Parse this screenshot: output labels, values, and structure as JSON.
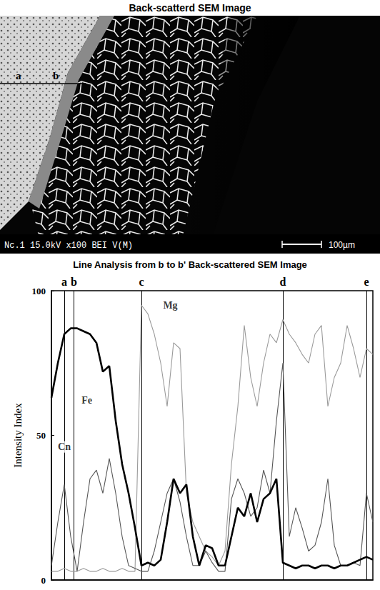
{
  "image": {
    "title": "Back-scatterd SEM Image",
    "line_labels": [
      "a",
      "b"
    ],
    "caption": "Nc.1 15.0kV x100 BEI V(M)",
    "scale_bar": "100µm"
  },
  "chart_data": {
    "type": "line",
    "title": "Line Analysis from b to b' Back-scattered SEM Image",
    "y_label": "Intensity Index",
    "x": [
      0,
      2,
      4,
      6,
      8,
      10,
      12,
      14,
      16,
      18,
      20,
      22,
      24,
      26,
      28,
      30,
      32,
      34,
      36,
      38,
      40,
      42,
      44,
      46,
      48,
      50,
      52,
      54,
      56,
      58,
      60,
      62,
      64,
      66,
      68,
      70,
      72,
      74,
      76,
      78,
      80,
      82,
      84,
      86,
      88,
      90,
      92,
      94,
      96,
      98,
      100
    ],
    "series": [
      {
        "name": "Fe",
        "color": "#000000",
        "line_style": "solid",
        "values": [
          63,
          75,
          85,
          87,
          87,
          86,
          85,
          82,
          72,
          74,
          55,
          40,
          30,
          18,
          5,
          6,
          5,
          7,
          20,
          35,
          30,
          33,
          15,
          5,
          12,
          11,
          5,
          5,
          15,
          25,
          22,
          30,
          20,
          28,
          30,
          35,
          6,
          5,
          4,
          5,
          5,
          4,
          5,
          5,
          4,
          5,
          5,
          6,
          7,
          8,
          7
        ]
      },
      {
        "name": "Cn",
        "color": "#555555",
        "line_style": "solid",
        "values": [
          5,
          20,
          33,
          15,
          3,
          20,
          35,
          38,
          30,
          42,
          30,
          15,
          5,
          4,
          3,
          3,
          10,
          20,
          30,
          35,
          27,
          15,
          5,
          5,
          10,
          6,
          3,
          3,
          28,
          35,
          30,
          22,
          25,
          38,
          30,
          55,
          75,
          15,
          25,
          18,
          10,
          12,
          20,
          35,
          12,
          5,
          5,
          6,
          5,
          30,
          20
        ]
      },
      {
        "name": "Mg",
        "color": "#9a9a9a",
        "line_style": "solid",
        "values": [
          3,
          3,
          4,
          3,
          3,
          4,
          3,
          3,
          4,
          3,
          3,
          4,
          3,
          3,
          95,
          92,
          85,
          75,
          60,
          82,
          80,
          30,
          20,
          15,
          10,
          8,
          5,
          10,
          40,
          60,
          88,
          70,
          60,
          75,
          85,
          82,
          90,
          85,
          82,
          78,
          75,
          85,
          88,
          60,
          70,
          75,
          88,
          80,
          70,
          80,
          78
        ]
      }
    ],
    "markers": [
      {
        "label": "a",
        "x": 4
      },
      {
        "label": "b",
        "x": 7
      },
      {
        "label": "c",
        "x": 28
      },
      {
        "label": "d",
        "x": 72
      },
      {
        "label": "e",
        "x": 98
      }
    ],
    "annotations": [
      {
        "text": "Fe",
        "x": 11,
        "y": 62
      },
      {
        "text": "Cn",
        "x": 4,
        "y": 46
      },
      {
        "text": "Mg",
        "x": 37,
        "y": 95
      }
    ],
    "xlim": [
      0,
      100
    ],
    "ylim": [
      0,
      100
    ],
    "yticks": [
      0,
      50,
      100
    ],
    "grid": false,
    "tick_labels": "y"
  }
}
